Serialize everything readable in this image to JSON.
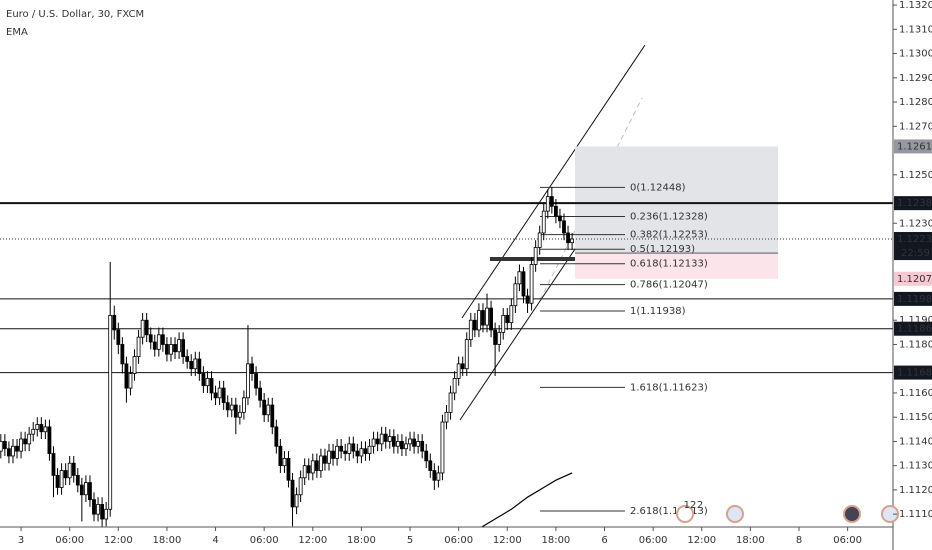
{
  "chart_data": {
    "type": "candlestick",
    "title": "Euro / U.S. Dollar, 30, FXCM",
    "indicator": "EMA",
    "up_color": "#ffffff",
    "down_color": "#000000",
    "wick_color": "#000000",
    "ema_color": "#000000",
    "xlim": [
      -2.6,
      107.6
    ],
    "ylim": [
      1.11047,
      1.13221
    ],
    "xticks": [
      {
        "value": 0,
        "label": "3"
      },
      {
        "value": 6,
        "label": "06:00"
      },
      {
        "value": 12,
        "label": "12:00"
      },
      {
        "value": 18,
        "label": "18:00"
      },
      {
        "value": 24,
        "label": "4"
      },
      {
        "value": 30,
        "label": "06:00"
      },
      {
        "value": 36,
        "label": "12:00"
      },
      {
        "value": 42,
        "label": "18:00"
      },
      {
        "value": 48,
        "label": "5"
      },
      {
        "value": 54,
        "label": "06:00"
      },
      {
        "value": 60,
        "label": "12:00"
      },
      {
        "value": 66,
        "label": "18:00"
      },
      {
        "value": 72,
        "label": "6"
      },
      {
        "value": 78,
        "label": "06:00"
      },
      {
        "value": 84,
        "label": "12:00"
      },
      {
        "value": 90,
        "label": "18:00"
      },
      {
        "value": 96,
        "label": "8"
      },
      {
        "value": 102,
        "label": "06:00"
      }
    ],
    "yticks": [
      {
        "value": 1.132,
        "label": "1.13200"
      },
      {
        "value": 1.131,
        "label": "1.13100"
      },
      {
        "value": 1.13,
        "label": "1.13000"
      },
      {
        "value": 1.129,
        "label": "1.12900"
      },
      {
        "value": 1.128,
        "label": "1.12800"
      },
      {
        "value": 1.127,
        "label": "1.12700"
      },
      {
        "value": 1.125,
        "label": "1.12500"
      },
      {
        "value": 1.123,
        "label": "1.12300"
      },
      {
        "value": 1.119,
        "label": "1.11900"
      },
      {
        "value": 1.118,
        "label": "1.11800"
      },
      {
        "value": 1.116,
        "label": "1.11600"
      },
      {
        "value": 1.115,
        "label": "1.11500"
      },
      {
        "value": 1.114,
        "label": "1.11400"
      },
      {
        "value": 1.113,
        "label": "1.11300"
      },
      {
        "value": 1.112,
        "label": "1.11200"
      },
      {
        "value": 1.111,
        "label": "1.11100"
      }
    ],
    "x": [
      -2.5,
      -2,
      -1.5,
      -1,
      -0.5,
      0,
      0.5,
      1,
      1.5,
      2,
      2.5,
      3,
      3.5,
      4,
      4.5,
      5,
      5.5,
      6,
      6.5,
      7,
      7.5,
      8,
      8.5,
      9,
      9.5,
      10,
      10.5,
      11,
      11.5,
      12,
      12.5,
      13,
      13.5,
      14,
      14.5,
      15,
      15.5,
      16,
      16.5,
      17,
      17.5,
      18,
      18.5,
      19,
      19.5,
      20,
      20.5,
      21,
      21.5,
      22,
      22.5,
      23,
      23.5,
      24,
      24.5,
      25,
      25.5,
      26,
      26.5,
      27,
      27.5,
      28,
      28.5,
      29,
      29.5,
      30,
      30.5,
      31,
      31.5,
      32,
      32.5,
      33,
      33.5,
      34,
      34.5,
      35,
      35.5,
      36,
      36.5,
      37,
      37.5,
      38,
      38.5,
      39,
      39.5,
      40,
      40.5,
      41,
      41.5,
      42,
      42.5,
      43,
      43.5,
      44,
      44.5,
      45,
      45.5,
      46,
      46.5,
      47,
      47.5,
      48,
      48.5,
      49,
      49.5,
      50,
      50.5,
      51,
      51.5,
      52,
      52.5,
      53,
      53.5,
      54,
      54.5,
      55,
      55.5,
      56,
      56.5,
      57,
      57.5,
      58,
      58.5,
      59,
      59.5,
      60,
      60.5,
      61,
      61.5,
      62,
      62.5,
      63,
      63.5,
      64,
      64.5,
      65,
      65.5,
      66,
      66.5,
      67,
      67.5,
      68
    ],
    "candles": [
      [
        1.1136,
        1.1143,
        1.1133,
        1.114
      ],
      [
        1.114,
        1.1143,
        1.1134,
        1.1137
      ],
      [
        1.1137,
        1.114,
        1.1131,
        1.1134
      ],
      [
        1.1134,
        1.1141,
        1.1131,
        1.1138
      ],
      [
        1.1138,
        1.1141,
        1.1133,
        1.1136
      ],
      [
        1.1136,
        1.1144,
        1.1133,
        1.1141
      ],
      [
        1.1141,
        1.1144,
        1.1136,
        1.1139
      ],
      [
        1.1139,
        1.1146,
        1.1136,
        1.1143
      ],
      [
        1.1143,
        1.1148,
        1.114,
        1.1145
      ],
      [
        1.1145,
        1.115,
        1.1142,
        1.1147
      ],
      [
        1.1147,
        1.115,
        1.1141,
        1.1144
      ],
      [
        1.1144,
        1.1149,
        1.1141,
        1.1146
      ],
      [
        1.1146,
        1.1149,
        1.1132,
        1.1135
      ],
      [
        1.1135,
        1.1138,
        1.1117,
        1.1126
      ],
      [
        1.1126,
        1.1129,
        1.1118,
        1.1121
      ],
      [
        1.1121,
        1.1131,
        1.1118,
        1.1128
      ],
      [
        1.1128,
        1.1131,
        1.1122,
        1.1125
      ],
      [
        1.1125,
        1.1134,
        1.1122,
        1.1131
      ],
      [
        1.1131,
        1.1134,
        1.1123,
        1.1126
      ],
      [
        1.1126,
        1.1129,
        1.1119,
        1.1122
      ],
      [
        1.1122,
        1.1125,
        1.1107,
        1.1118
      ],
      [
        1.1118,
        1.1126,
        1.1115,
        1.1123
      ],
      [
        1.1123,
        1.1126,
        1.1113,
        1.1116
      ],
      [
        1.1116,
        1.1119,
        1.1107,
        1.111
      ],
      [
        1.111,
        1.1117,
        1.1107,
        1.1114
      ],
      [
        1.1114,
        1.1117,
        1.1104,
        1.1108
      ],
      [
        1.1108,
        1.1115,
        1.1105,
        1.1112
      ],
      [
        1.1112,
        1.1214,
        1.1109,
        1.1192
      ],
      [
        1.1192,
        1.1196,
        1.1182,
        1.1186
      ],
      [
        1.1186,
        1.1189,
        1.1176,
        1.118
      ],
      [
        1.118,
        1.1183,
        1.1168,
        1.1172
      ],
      [
        1.1172,
        1.1175,
        1.1156,
        1.1162
      ],
      [
        1.1162,
        1.1171,
        1.1159,
        1.1168
      ],
      [
        1.1168,
        1.1178,
        1.1165,
        1.1175
      ],
      [
        1.1175,
        1.1186,
        1.1172,
        1.1183
      ],
      [
        1.1183,
        1.1193,
        1.118,
        1.119
      ],
      [
        1.119,
        1.1193,
        1.1181,
        1.1184
      ],
      [
        1.1184,
        1.1187,
        1.1178,
        1.1181
      ],
      [
        1.1181,
        1.1184,
        1.1175,
        1.1178
      ],
      [
        1.1178,
        1.1187,
        1.1175,
        1.1184
      ],
      [
        1.1184,
        1.1187,
        1.1177,
        1.118
      ],
      [
        1.118,
        1.1183,
        1.1173,
        1.1176
      ],
      [
        1.1176,
        1.1183,
        1.1173,
        1.118
      ],
      [
        1.118,
        1.1183,
        1.1174,
        1.1177
      ],
      [
        1.1177,
        1.1185,
        1.1174,
        1.1182
      ],
      [
        1.1182,
        1.1185,
        1.1172,
        1.1175
      ],
      [
        1.1175,
        1.1178,
        1.117,
        1.1173
      ],
      [
        1.1173,
        1.1176,
        1.1167,
        1.117
      ],
      [
        1.117,
        1.1177,
        1.1167,
        1.1174
      ],
      [
        1.1174,
        1.1177,
        1.1165,
        1.1168
      ],
      [
        1.1168,
        1.1171,
        1.116,
        1.1163
      ],
      [
        1.1163,
        1.1169,
        1.116,
        1.1166
      ],
      [
        1.1166,
        1.1169,
        1.1157,
        1.116
      ],
      [
        1.116,
        1.1163,
        1.1155,
        1.1158
      ],
      [
        1.1158,
        1.1165,
        1.1155,
        1.1162
      ],
      [
        1.1162,
        1.1165,
        1.1153,
        1.1156
      ],
      [
        1.1156,
        1.1159,
        1.115,
        1.1153
      ],
      [
        1.1153,
        1.1158,
        1.115,
        1.1155
      ],
      [
        1.1155,
        1.1158,
        1.1143,
        1.115
      ],
      [
        1.115,
        1.1155,
        1.1147,
        1.1152
      ],
      [
        1.1152,
        1.1161,
        1.1149,
        1.1158
      ],
      [
        1.1158,
        1.1188,
        1.1155,
        1.1172
      ],
      [
        1.1172,
        1.1175,
        1.1165,
        1.1168
      ],
      [
        1.1168,
        1.1171,
        1.1159,
        1.1162
      ],
      [
        1.1162,
        1.1165,
        1.1154,
        1.1157
      ],
      [
        1.1157,
        1.116,
        1.1148,
        1.1151
      ],
      [
        1.1151,
        1.1158,
        1.1148,
        1.1155
      ],
      [
        1.1155,
        1.1158,
        1.1143,
        1.1146
      ],
      [
        1.1146,
        1.1149,
        1.1135,
        1.1138
      ],
      [
        1.1138,
        1.1141,
        1.1127,
        1.113
      ],
      [
        1.113,
        1.1136,
        1.1127,
        1.1133
      ],
      [
        1.1133,
        1.1136,
        1.1121,
        1.1124
      ],
      [
        1.1124,
        1.1127,
        1.1105,
        1.1113
      ],
      [
        1.1113,
        1.1121,
        1.111,
        1.1118
      ],
      [
        1.1118,
        1.1128,
        1.1115,
        1.1125
      ],
      [
        1.1125,
        1.1133,
        1.1122,
        1.113
      ],
      [
        1.113,
        1.1133,
        1.1124,
        1.1127
      ],
      [
        1.1127,
        1.1135,
        1.1124,
        1.1132
      ],
      [
        1.1132,
        1.1135,
        1.1125,
        1.1128
      ],
      [
        1.1128,
        1.1137,
        1.1125,
        1.1134
      ],
      [
        1.1134,
        1.1137,
        1.1128,
        1.1131
      ],
      [
        1.1131,
        1.1139,
        1.1128,
        1.1136
      ],
      [
        1.1136,
        1.1139,
        1.113,
        1.1133
      ],
      [
        1.1133,
        1.1141,
        1.113,
        1.1138
      ],
      [
        1.1138,
        1.1141,
        1.1133,
        1.1136
      ],
      [
        1.1136,
        1.1139,
        1.1132,
        1.1135
      ],
      [
        1.1135,
        1.1142,
        1.1132,
        1.1139
      ],
      [
        1.1139,
        1.1142,
        1.1133,
        1.1136
      ],
      [
        1.1136,
        1.1139,
        1.1131,
        1.1134
      ],
      [
        1.1134,
        1.114,
        1.1131,
        1.1137
      ],
      [
        1.1137,
        1.114,
        1.1132,
        1.1135
      ],
      [
        1.1135,
        1.1141,
        1.1132,
        1.1138
      ],
      [
        1.1138,
        1.1144,
        1.1135,
        1.1141
      ],
      [
        1.1141,
        1.1144,
        1.1136,
        1.1139
      ],
      [
        1.1139,
        1.1146,
        1.1136,
        1.1143
      ],
      [
        1.1143,
        1.1146,
        1.1137,
        1.114
      ],
      [
        1.114,
        1.1145,
        1.1137,
        1.1142
      ],
      [
        1.1142,
        1.1145,
        1.1135,
        1.1138
      ],
      [
        1.1138,
        1.1143,
        1.1135,
        1.114
      ],
      [
        1.114,
        1.1143,
        1.1134,
        1.1137
      ],
      [
        1.1137,
        1.1142,
        1.1134,
        1.1139
      ],
      [
        1.1139,
        1.1144,
        1.1136,
        1.1141
      ],
      [
        1.1141,
        1.1144,
        1.1135,
        1.1138
      ],
      [
        1.1138,
        1.1143,
        1.1135,
        1.114
      ],
      [
        1.114,
        1.1143,
        1.1133,
        1.1136
      ],
      [
        1.1136,
        1.1139,
        1.1129,
        1.1132
      ],
      [
        1.1132,
        1.1135,
        1.1125,
        1.1128
      ],
      [
        1.1128,
        1.1131,
        1.112,
        1.1124
      ],
      [
        1.1124,
        1.113,
        1.1121,
        1.1127
      ],
      [
        1.1127,
        1.1151,
        1.1124,
        1.1148
      ],
      [
        1.1148,
        1.1155,
        1.1145,
        1.1152
      ],
      [
        1.1152,
        1.1163,
        1.1149,
        1.116
      ],
      [
        1.116,
        1.1169,
        1.1157,
        1.1166
      ],
      [
        1.1166,
        1.1175,
        1.1163,
        1.1172
      ],
      [
        1.1172,
        1.1175,
        1.1167,
        1.117
      ],
      [
        1.117,
        1.1185,
        1.1167,
        1.1182
      ],
      [
        1.1182,
        1.1193,
        1.1179,
        1.119
      ],
      [
        1.119,
        1.1193,
        1.1183,
        1.1186
      ],
      [
        1.1186,
        1.1197,
        1.1183,
        1.1194
      ],
      [
        1.1194,
        1.1197,
        1.1185,
        1.1188
      ],
      [
        1.1188,
        1.1201,
        1.1185,
        1.1195
      ],
      [
        1.1195,
        1.1198,
        1.1183,
        1.1186
      ],
      [
        1.1186,
        1.1189,
        1.1167,
        1.118
      ],
      [
        1.118,
        1.1188,
        1.1177,
        1.1185
      ],
      [
        1.1185,
        1.1195,
        1.1182,
        1.1192
      ],
      [
        1.1192,
        1.1195,
        1.1186,
        1.1189
      ],
      [
        1.1189,
        1.1199,
        1.1186,
        1.1196
      ],
      [
        1.1196,
        1.1208,
        1.1193,
        1.1205
      ],
      [
        1.1205,
        1.1213,
        1.1202,
        1.121
      ],
      [
        1.121,
        1.1212,
        1.1197,
        1.12
      ],
      [
        1.12,
        1.1203,
        1.1193,
        1.1197
      ],
      [
        1.1197,
        1.1216,
        1.1194,
        1.1213
      ],
      [
        1.1213,
        1.1223,
        1.121,
        1.122
      ],
      [
        1.122,
        1.1229,
        1.1217,
        1.1226
      ],
      [
        1.1226,
        1.1238,
        1.1223,
        1.1235
      ],
      [
        1.1235,
        1.1244,
        1.1232,
        1.1241
      ],
      [
        1.1241,
        1.1245,
        1.1234,
        1.1237
      ],
      [
        1.1237,
        1.124,
        1.123,
        1.1233
      ],
      [
        1.1233,
        1.1236,
        1.1228,
        1.1231
      ],
      [
        1.1231,
        1.1234,
        1.1223,
        1.1226
      ],
      [
        1.1226,
        1.1229,
        1.1219,
        1.1222
      ],
      [
        1.1222,
        1.1226,
        1.1219,
        1.12235
      ]
    ],
    "ema": {
      "x": [
        56.5,
        58.5,
        60.5,
        62.5,
        64.5,
        66,
        68
      ],
      "values": [
        1.1104,
        1.1108,
        1.1112,
        1.1117,
        1.1121,
        1.1124,
        1.1127
      ]
    },
    "hlines": [
      1.12383,
      1.11988,
      1.11865,
      1.11684
    ],
    "last_price": 1.12235,
    "countdown": "22:59",
    "position": {
      "target": 1.12617,
      "entry": 1.12177,
      "stop": 1.12071
    },
    "fib": [
      {
        "value": 1.12448,
        "label": "0(1.12448)"
      },
      {
        "value": 1.12328,
        "label": "0.236(1.12328)"
      },
      {
        "value": 1.12253,
        "label": "0.382(1.12253)"
      },
      {
        "value": 1.12193,
        "label": "0.5(1.12193)"
      },
      {
        "value": 1.12133,
        "label": "0.618(1.12133)"
      },
      {
        "value": 1.12047,
        "label": "0.786(1.12047)"
      },
      {
        "value": 1.11938,
        "label": "1(1.11938)"
      },
      {
        "value": 1.11623,
        "label": "1.618(1.11623)"
      },
      {
        "value": 1.11113,
        "label": "2.618(1.11113)"
      }
    ],
    "events": [
      "12",
      "2"
    ]
  }
}
